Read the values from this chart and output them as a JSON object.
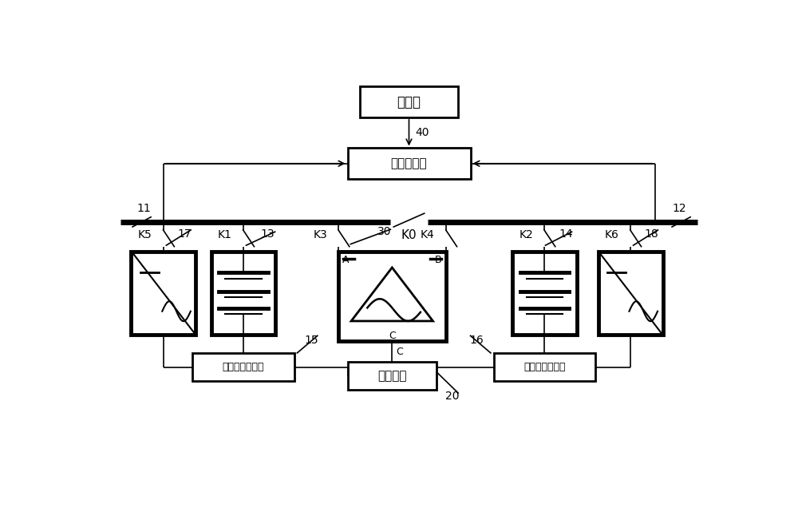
{
  "bg_color": "#ffffff",
  "line_color": "#000000",
  "figure_size": [
    10.0,
    6.41
  ],
  "dpi": 100,
  "labels": {
    "shangweiji": "上位机",
    "xitong": "系统监控器",
    "jiaoliu": "交流电网",
    "diyi": "第一电池巡检仪",
    "dier": "第二电池巡检仪",
    "K0": "K0",
    "K1": "K1",
    "K2": "K2",
    "K3": "K3",
    "K4": "K4",
    "K5": "K5",
    "K6": "K6",
    "A": "A",
    "B": "B",
    "C": "C",
    "n11": "11",
    "n12": "12",
    "n13": "13",
    "n14": "14",
    "n15": "15",
    "n16": "16",
    "n17": "17",
    "n18": "18",
    "n20": "20",
    "n30": "30",
    "n40": "40"
  }
}
